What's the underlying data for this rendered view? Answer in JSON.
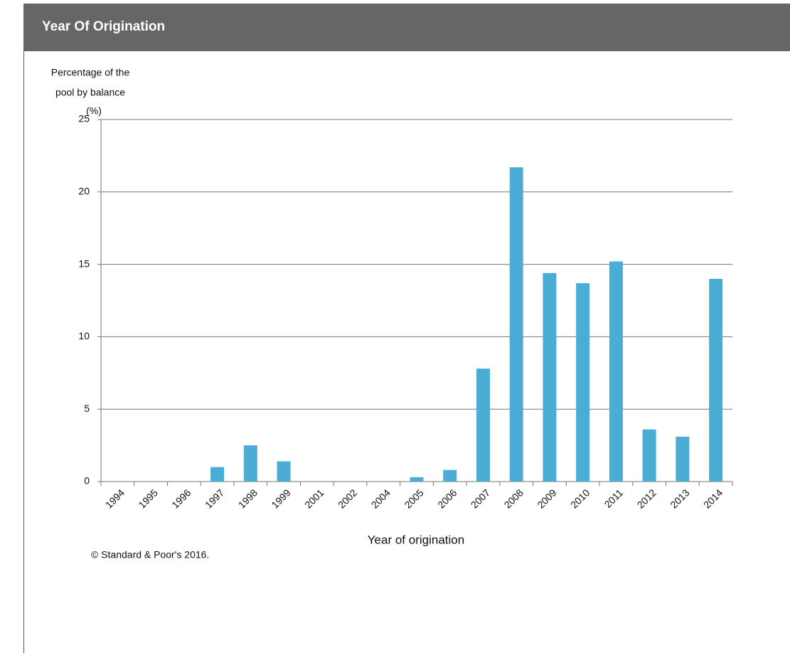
{
  "header": {
    "title": "Year Of Origination"
  },
  "chart_data": {
    "type": "bar",
    "ylabel": [
      "Percentage of the",
      "pool by balance",
      "(%)"
    ],
    "xlabel": "Year of origination",
    "source": "© Standard & Poor's 2016.",
    "categories": [
      "1994",
      "1995",
      "1996",
      "1997",
      "1998",
      "1999",
      "2001",
      "2002",
      "2004",
      "2005",
      "2006",
      "2007",
      "2008",
      "2009",
      "2010",
      "2011",
      "2012",
      "2013",
      "2014"
    ],
    "values": [
      0,
      0,
      0,
      1.0,
      2.5,
      1.4,
      0,
      0,
      0,
      0.3,
      0.8,
      7.8,
      21.7,
      14.4,
      13.7,
      15.2,
      3.6,
      3.1,
      14.0
    ],
    "color": "#4bacd6",
    "ylim": [
      0,
      25
    ],
    "yticks": [
      0,
      5,
      10,
      15,
      20,
      25
    ],
    "grid": true
  }
}
